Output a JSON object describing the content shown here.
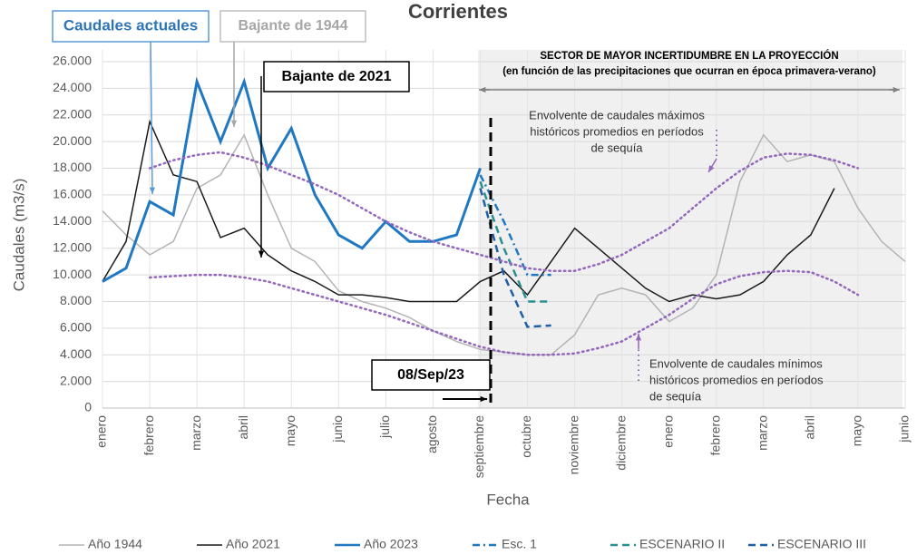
{
  "chart_data": {
    "type": "line",
    "title": "Corrientes",
    "xlabel": "Fecha",
    "ylabel": "Caudales (m3/s)",
    "categories": [
      "enero",
      null,
      "febrero",
      null,
      "marzo",
      null,
      "abril",
      null,
      "mayo",
      null,
      "junio",
      null,
      "julio",
      null,
      "agosto",
      null,
      "septiembre",
      null,
      "octubre",
      null,
      "noviembre",
      null,
      "diciembre",
      null,
      "enero",
      null,
      "febrero",
      null,
      "marzo",
      null,
      "abril",
      null,
      "mayo",
      null,
      "junio"
    ],
    "ylim": [
      0,
      26000
    ],
    "yticks": [
      {
        "value": 0,
        "label": "0"
      },
      {
        "value": 2000,
        "label": "2.000"
      },
      {
        "value": 4000,
        "label": "4.000"
      },
      {
        "value": 6000,
        "label": "6.000"
      },
      {
        "value": 8000,
        "label": "8.000"
      },
      {
        "value": 10000,
        "label": "10.000"
      },
      {
        "value": 12000,
        "label": "12.000"
      },
      {
        "value": 14000,
        "label": "14.000"
      },
      {
        "value": 16000,
        "label": "16.000"
      },
      {
        "value": 18000,
        "label": "18.000"
      },
      {
        "value": 20000,
        "label": "20.000"
      },
      {
        "value": 22000,
        "label": "22.000"
      },
      {
        "value": 24000,
        "label": "24.000"
      },
      {
        "value": 26000,
        "label": "26.000"
      }
    ],
    "grid": true,
    "legend": "bottom",
    "series": [
      {
        "name": "Año 1944",
        "color": "#b4b4b4",
        "style": "solid",
        "width": 1.5,
        "values": [
          14800,
          13000,
          11500,
          12500,
          16500,
          17500,
          20500,
          16000,
          12000,
          11000,
          8800,
          8000,
          7500,
          6800,
          5800,
          5000,
          4400,
          4200,
          4000,
          4000,
          5500,
          8500,
          9000,
          8500,
          6500,
          7500,
          10000,
          17000,
          20500,
          18500,
          19000,
          18500,
          15000,
          12500,
          11000
        ]
      },
      {
        "name": "Año 2021",
        "color": "#1a1a1a",
        "style": "solid",
        "width": 1.5,
        "values": [
          9500,
          12500,
          21500,
          17500,
          17000,
          12800,
          13500,
          11500,
          10300,
          9500,
          8500,
          8500,
          8300,
          8000,
          8000,
          8000,
          9500,
          10300,
          8500,
          11000,
          13500,
          12000,
          10500,
          9000,
          8000,
          8500,
          8200,
          8500,
          9500,
          11500,
          13000,
          16500,
          null,
          null,
          null
        ]
      },
      {
        "name": "Año 2023",
        "color": "#1f78c1",
        "style": "solid",
        "width": 3,
        "values": [
          9500,
          10500,
          15500,
          14500,
          24500,
          20000,
          24500,
          18000,
          21000,
          16000,
          13000,
          12000,
          14000,
          12500,
          12500,
          13000,
          18000,
          null,
          null,
          null,
          null,
          null,
          null,
          null,
          null,
          null,
          null,
          null,
          null,
          null,
          null,
          null,
          null,
          null,
          null
        ]
      },
      {
        "name": "Esc. 1",
        "color": "#1f78c1",
        "style": "dashdot",
        "width": 2.5,
        "values": [
          null,
          null,
          null,
          null,
          null,
          null,
          null,
          null,
          null,
          null,
          null,
          null,
          null,
          null,
          null,
          null,
          17500,
          14000,
          10000,
          10000,
          null,
          null,
          null,
          null,
          null,
          null,
          null,
          null,
          null,
          null,
          null,
          null,
          null,
          null,
          null
        ]
      },
      {
        "name": "ESCENARIO II",
        "color": "#2a8f8f",
        "style": "dashed",
        "width": 2.5,
        "values": [
          null,
          null,
          null,
          null,
          null,
          null,
          null,
          null,
          null,
          null,
          null,
          null,
          null,
          null,
          null,
          null,
          17000,
          12000,
          8000,
          8000,
          null,
          null,
          null,
          null,
          null,
          null,
          null,
          null,
          null,
          null,
          null,
          null,
          null,
          null,
          null
        ]
      },
      {
        "name": "ESCENARIO III",
        "color": "#1f5fa8",
        "style": "dashed",
        "width": 2.5,
        "values": [
          null,
          null,
          null,
          null,
          null,
          null,
          null,
          null,
          null,
          null,
          null,
          null,
          null,
          null,
          null,
          null,
          16500,
          10000,
          6100,
          6200,
          null,
          null,
          null,
          null,
          null,
          null,
          null,
          null,
          null,
          null,
          null,
          null,
          null,
          null,
          null
        ]
      },
      {
        "color": "#9467bd",
        "style": "dotted",
        "width": 2.5,
        "values": [
          null,
          null,
          18000,
          18600,
          19000,
          19200,
          18800,
          18200,
          17500,
          16800,
          16000,
          15000,
          14000,
          13200,
          12500,
          12000,
          11500,
          11000,
          10500,
          10300,
          10300,
          10800,
          11500,
          12500,
          13500,
          15000,
          16500,
          17800,
          18800,
          19100,
          19000,
          18600,
          18000,
          null,
          null
        ]
      },
      {
        "color": "#9467bd",
        "style": "dotted",
        "width": 2.5,
        "values": [
          null,
          null,
          9800,
          9900,
          10000,
          10000,
          9800,
          9500,
          9000,
          8500,
          8000,
          7500,
          7000,
          6400,
          5800,
          5200,
          4600,
          4200,
          4000,
          4000,
          4100,
          4500,
          5000,
          6000,
          7000,
          8200,
          9300,
          9900,
          10200,
          10300,
          10200,
          9500,
          8500,
          null,
          null
        ]
      }
    ],
    "annotations": [
      {
        "lines": [
          "Caudales actuales"
        ]
      },
      {
        "lines": [
          "Bajante de 1944"
        ]
      },
      {
        "lines": [
          "Bajante de 2021"
        ]
      },
      {
        "lines": [
          "08/Sep/23"
        ]
      },
      {
        "lines": [
          "SECTOR DE MAYOR INCERTIDUMBRE EN LA PROYECCIÓN",
          "(en función de las precipitaciones que ocurran  en época primavera-verano)"
        ]
      },
      {
        "lines": [
          "Envolvente de caudales máximos",
          "históricos promedios en períodos",
          "de sequía"
        ]
      },
      {
        "lines": [
          "Envolvente de caudales mínimos",
          "históricos promedios en períodos",
          "de sequía"
        ]
      }
    ]
  }
}
